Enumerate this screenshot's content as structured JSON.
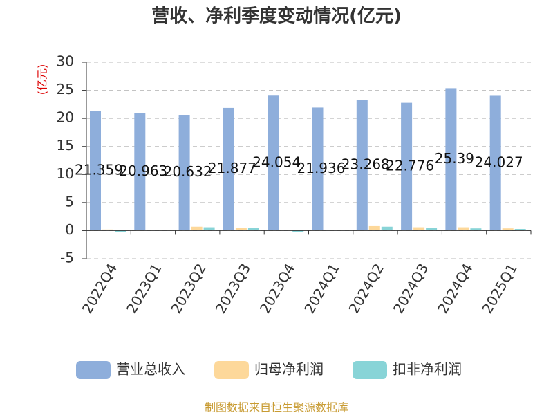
{
  "chart_data": {
    "type": "bar",
    "title": "营收、净利季度变动情况(亿元)",
    "y_label": "(亿元)",
    "source": "制图数据来自恒生聚源数据库",
    "categories": [
      "2022Q4",
      "2023Q1",
      "2023Q2",
      "2023Q3",
      "2023Q4",
      "2024Q1",
      "2024Q2",
      "2024Q3",
      "2024Q4",
      "2025Q1"
    ],
    "series": [
      {
        "name": "营业总收入",
        "color": "#8eaedb",
        "values": [
          21.359,
          20.963,
          20.632,
          21.877,
          24.054,
          21.936,
          23.268,
          22.776,
          25.39,
          24.027
        ],
        "show_labels": true
      },
      {
        "name": "归母净利润",
        "color": "#fdd89a",
        "values": [
          0.2,
          0.05,
          0.7,
          0.5,
          0.1,
          0.1,
          0.8,
          0.6,
          0.6,
          0.4
        ]
      },
      {
        "name": "扣非净利润",
        "color": "#88d4d7",
        "values": [
          -0.3,
          0.02,
          0.6,
          0.5,
          -0.2,
          0.05,
          0.7,
          0.5,
          0.4,
          0.3
        ]
      }
    ],
    "ylim": [
      -5,
      30
    ],
    "yticks": [
      -5,
      0,
      5,
      10,
      15,
      20,
      25,
      30
    ],
    "grid": true,
    "legend": "bottom"
  }
}
